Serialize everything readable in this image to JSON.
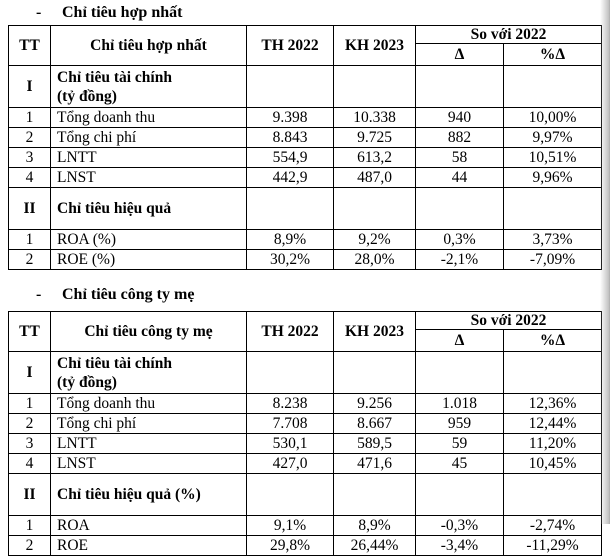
{
  "page": {
    "background": "#ffffff",
    "text_color": "#000000",
    "border_color": "#000000",
    "scan_edge_color": "#b5b5b5"
  },
  "consolidated": {
    "heading_dash": "-",
    "heading": "Chỉ tiêu hợp nhất",
    "header": {
      "tt": "TT",
      "name": "Chỉ tiêu hợp nhất",
      "th2022": "TH 2022",
      "kh2023": "KH 2023",
      "compare": "So với 2022",
      "delta": "Δ",
      "pct_delta": "%Δ"
    },
    "rows": [
      {
        "tt": "I",
        "name": "Chỉ tiêu tài chính\n(tỷ đồng)",
        "th": "",
        "kh": "",
        "d": "",
        "pd": ""
      },
      {
        "tt": "1",
        "name": "Tổng doanh thu",
        "th": "9.398",
        "kh": "10.338",
        "d": "940",
        "pd": "10,00%"
      },
      {
        "tt": "2",
        "name": "Tổng chi phí",
        "th": "8.843",
        "kh": "9.725",
        "d": "882",
        "pd": "9,97%"
      },
      {
        "tt": "3",
        "name": "LNTT",
        "th": "554,9",
        "kh": "613,2",
        "d": "58",
        "pd": "10,51%"
      },
      {
        "tt": "4",
        "name": "LNST",
        "th": "442,9",
        "kh": "487,0",
        "d": "44",
        "pd": "9,96%"
      },
      {
        "tt": "II",
        "name": "Chỉ tiêu hiệu quả",
        "th": "",
        "kh": "",
        "d": "",
        "pd": ""
      },
      {
        "tt": "1",
        "name": "ROA (%)",
        "th": "8,9%",
        "kh": "9,2%",
        "d": "0,3%",
        "pd": "3,73%"
      },
      {
        "tt": "2",
        "name": "ROE (%)",
        "th": "30,2%",
        "kh": "28,0%",
        "d": "-2,1%",
        "pd": "-7,09%"
      }
    ]
  },
  "parent_company": {
    "heading_dash": "-",
    "heading": "Chỉ tiêu công ty mẹ",
    "header": {
      "tt": "TT",
      "name": "Chỉ tiêu công ty mẹ",
      "th2022": "TH 2022",
      "kh2023": "KH 2023",
      "compare": "So với 2022",
      "delta": "Δ",
      "pct_delta": "%Δ"
    },
    "rows": [
      {
        "tt": "I",
        "name": "Chỉ tiêu tài chính\n(tỷ đồng)",
        "th": "",
        "kh": "",
        "d": "",
        "pd": ""
      },
      {
        "tt": "1",
        "name": "Tổng doanh thu",
        "th": "8.238",
        "kh": "9.256",
        "d": "1.018",
        "pd": "12,36%"
      },
      {
        "tt": "2",
        "name": "Tổng chi phí",
        "th": "7.708",
        "kh": "8.667",
        "d": "959",
        "pd": "12,44%"
      },
      {
        "tt": "3",
        "name": "LNTT",
        "th": "530,1",
        "kh": "589,5",
        "d": "59",
        "pd": "11,20%"
      },
      {
        "tt": "4",
        "name": "LNST",
        "th": "427,0",
        "kh": "471,6",
        "d": "45",
        "pd": "10,45%"
      },
      {
        "tt": "II",
        "name": "Chỉ tiêu hiệu quả (%)",
        "th": "",
        "kh": "",
        "d": "",
        "pd": ""
      },
      {
        "tt": "1",
        "name": "ROA",
        "th": "9,1%",
        "kh": "8,9%",
        "d": "-0,3%",
        "pd": "-2,74%"
      },
      {
        "tt": "2",
        "name": "ROE",
        "th": "29,8%",
        "kh": "26,44%",
        "d": "-3,4%",
        "pd": "-11,29%"
      }
    ]
  }
}
